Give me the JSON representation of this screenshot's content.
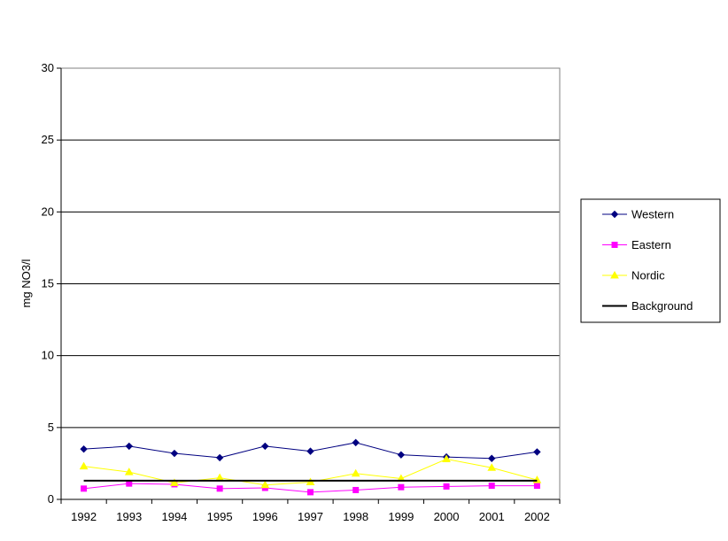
{
  "chart_data": {
    "type": "line",
    "title": "",
    "xlabel": "",
    "ylabel": "mg NO3/l",
    "ylim": [
      0,
      30
    ],
    "yticks": [
      0,
      5,
      10,
      15,
      20,
      25,
      30
    ],
    "grid": "horizontal",
    "legend_position": "right",
    "categories": [
      "1992",
      "1993",
      "1994",
      "1995",
      "1996",
      "1997",
      "1998",
      "1999",
      "2000",
      "2001",
      "2002"
    ],
    "series": [
      {
        "name": "Western",
        "color": "#000080",
        "marker": "diamond",
        "values": [
          3.5,
          3.7,
          3.2,
          2.9,
          3.7,
          3.35,
          3.95,
          3.1,
          2.95,
          2.85,
          3.3
        ]
      },
      {
        "name": "Eastern",
        "color": "#FF00FF",
        "marker": "square",
        "values": [
          0.75,
          1.1,
          1.05,
          0.75,
          0.8,
          0.5,
          0.65,
          0.85,
          0.9,
          0.95,
          0.95
        ]
      },
      {
        "name": "Nordic",
        "color": "#FFFF00",
        "marker": "triangle",
        "values": [
          2.3,
          1.9,
          1.15,
          1.5,
          1.0,
          1.2,
          1.8,
          1.45,
          2.8,
          2.2,
          1.35
        ]
      },
      {
        "name": "Background",
        "color": "#000000",
        "marker": "none",
        "values": [
          1.3,
          1.3,
          1.3,
          1.3,
          1.3,
          1.3,
          1.3,
          1.3,
          1.3,
          1.3,
          1.3
        ]
      }
    ]
  }
}
